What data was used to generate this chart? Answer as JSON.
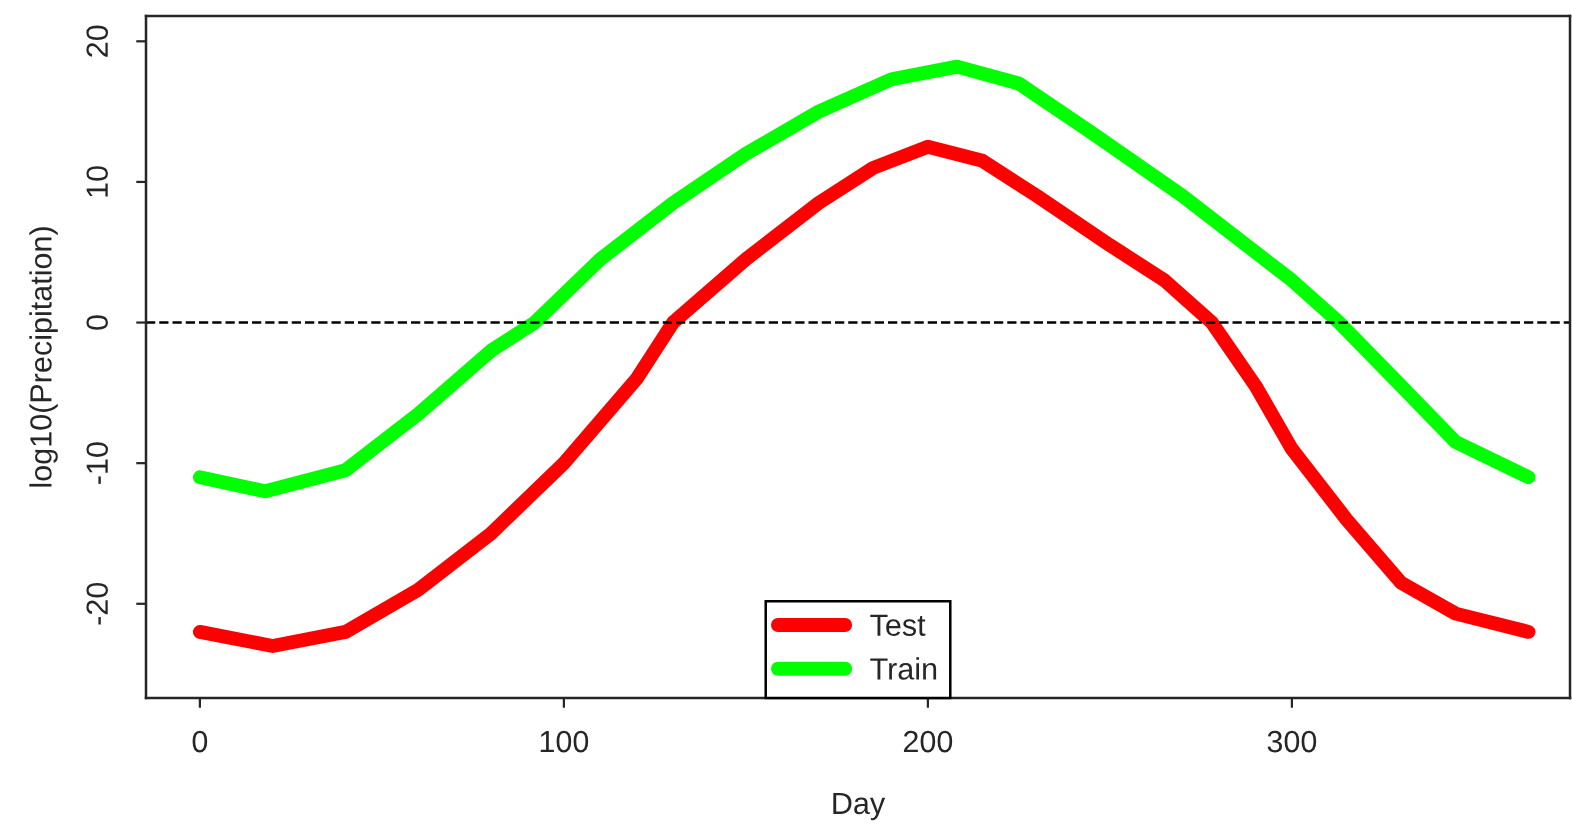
{
  "chart_data": {
    "type": "line",
    "xlabel": "Day",
    "ylabel": "log10(Precipitation)",
    "xlim": [
      -14.8,
      376.4
    ],
    "xticks": [
      0,
      100,
      200,
      300
    ],
    "ylim": [
      -26.7,
      21.8
    ],
    "yticks": [
      -20,
      -10,
      0,
      10,
      20
    ],
    "grid": false,
    "legend": "bottom",
    "marker": "none",
    "line_style": "solid",
    "ref_lines": [
      {
        "axis": "y",
        "value": 0,
        "color": "#000000",
        "line_style": "dashed"
      }
    ],
    "series": [
      {
        "name": "Test",
        "color": "#ff0000",
        "x": [
          0,
          20,
          40,
          60,
          80,
          100,
          120,
          130,
          150,
          170,
          185,
          200,
          215,
          230,
          250,
          265,
          278,
          290,
          300,
          315,
          330,
          345,
          365
        ],
        "values": [
          -22,
          -23,
          -22,
          -19,
          -15,
          -10,
          -4,
          0,
          4.5,
          8.5,
          11,
          12.5,
          11.5,
          9,
          5.5,
          3,
          0,
          -4.5,
          -9,
          -14,
          -18.5,
          -20.7,
          -22
        ]
      },
      {
        "name": "Train",
        "color": "#00ff00",
        "x": [
          0,
          18,
          40,
          60,
          80,
          92,
          110,
          130,
          150,
          170,
          190,
          208,
          225,
          245,
          270,
          290,
          300,
          313,
          330,
          345,
          365
        ],
        "values": [
          -11,
          -12,
          -10.5,
          -6.5,
          -2,
          0,
          4.5,
          8.5,
          12,
          15,
          17.3,
          18.2,
          17,
          13.5,
          9,
          5,
          3,
          0,
          -4.5,
          -8.5,
          -11
        ]
      }
    ]
  }
}
